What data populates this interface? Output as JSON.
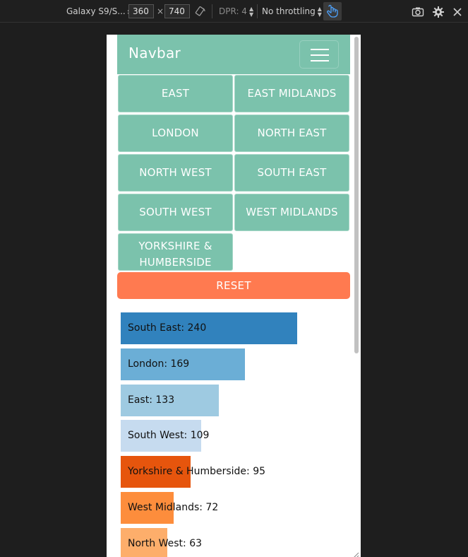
{
  "devtools": {
    "device": "Galaxy S9/S...",
    "width": "360",
    "height": "740",
    "dpr": "DPR: 4",
    "throttling": "No throttling",
    "times": "×"
  },
  "navbar": {
    "brand": "Navbar"
  },
  "regions": [
    "EAST",
    "EAST MIDLANDS",
    "LONDON",
    "NORTH EAST",
    "NORTH WEST",
    "SOUTH EAST",
    "SOUTH WEST",
    "WEST MIDLANDS",
    "YORKSHIRE & HUMBERSIDE"
  ],
  "reset_label": "RESET",
  "chart_data": {
    "type": "bar",
    "orientation": "horizontal",
    "categories": [
      "South East",
      "London",
      "East",
      "South West",
      "Yorkshire & Humberside",
      "West Midlands",
      "North West"
    ],
    "values": [
      240,
      169,
      133,
      109,
      95,
      72,
      63
    ],
    "labels": [
      "South East: 240",
      "London: 169",
      "East: 133",
      "South West: 109",
      "Yorkshire & Humberside: 95",
      "West Midlands: 72",
      "North West: 63"
    ],
    "colors": [
      "#3182bd",
      "#6baed6",
      "#9ecae1",
      "#c6dbef",
      "#e6550d",
      "#fd8d3c",
      "#fdae6b"
    ]
  }
}
